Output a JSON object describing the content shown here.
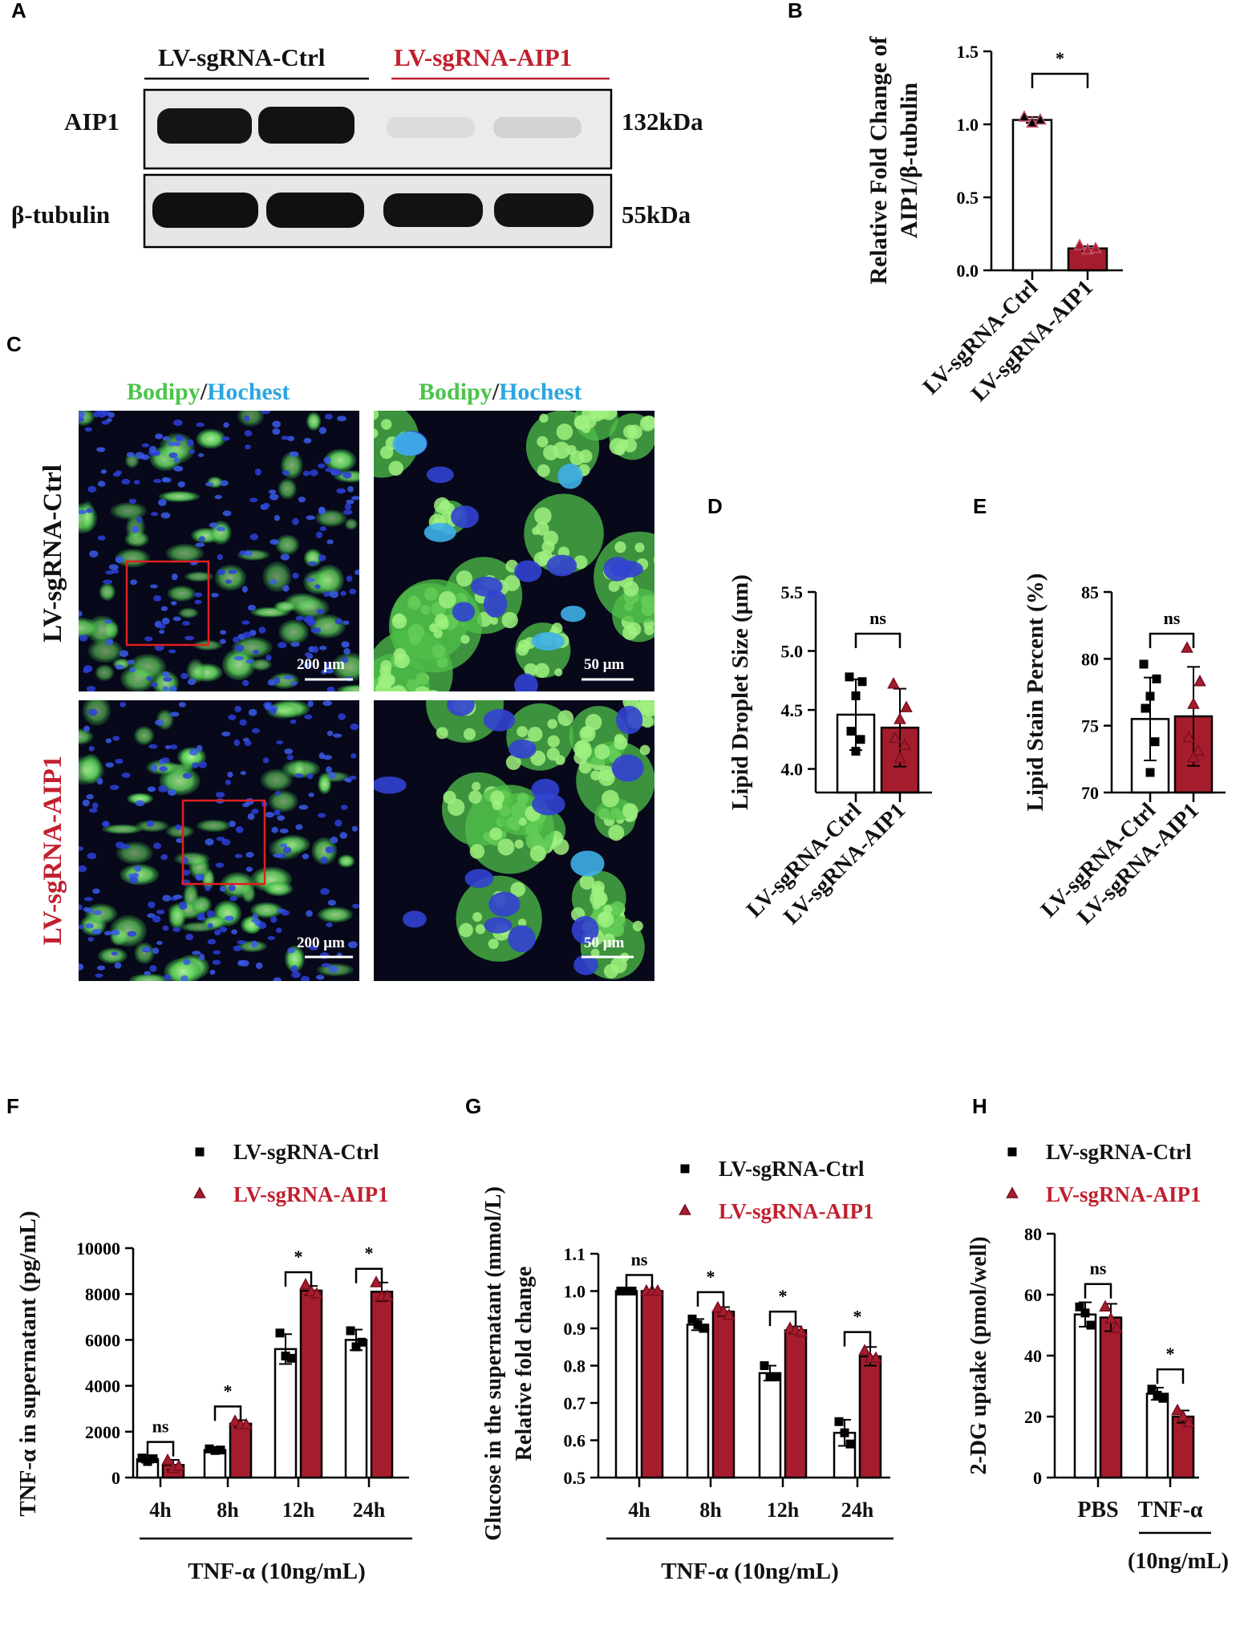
{
  "panels": {
    "A": "A",
    "B": "B",
    "C": "C",
    "D": "D",
    "E": "E",
    "F": "F",
    "G": "G",
    "H": "H"
  },
  "colors": {
    "ctrl": "#ffffff",
    "aip1": "#a51d2d",
    "red_text": "#c0202f",
    "green": "#5ad35a",
    "blue": "#2aa6e0"
  },
  "blot": {
    "group_ctrl": "LV-sgRNA-Ctrl",
    "group_aip1": "LV-sgRNA-AIP1",
    "row1_label": "AIP1",
    "row1_size": "132kDa",
    "row2_label": "β-tubulin",
    "row2_size": "55kDa"
  },
  "micro": {
    "stain_green": "Bodipy",
    "slash": "/",
    "stain_blue": "Hochest",
    "row_ctrl": "LV-sgRNA-Ctrl",
    "row_aip1": "LV-sgRNA-AIP1",
    "scale_200": "200 μm",
    "scale_50": "50 μm"
  },
  "chart_data": [
    {
      "panel": "B",
      "type": "bar",
      "ylabel_line1": "Relative Fold Change of",
      "ylabel_line2": "AIP1/β-tubulin",
      "categories": [
        "LV-sgRNA-Ctrl",
        "LV-sgRNA-AIP1"
      ],
      "values": [
        1.03,
        0.15
      ],
      "points": [
        [
          1.05,
          1.01,
          1.03
        ],
        [
          0.17,
          0.14,
          0.15
        ]
      ],
      "ylim": [
        0,
        1.5
      ],
      "yticks": [
        "0.0",
        "0.5",
        "1.0",
        "1.5"
      ],
      "significance": "*"
    },
    {
      "panel": "D",
      "type": "bar",
      "ylabel": "Lipid Droplet Size (μm)",
      "categories": [
        "LV-sgRNA-Ctrl",
        "LV-sgRNA-AIP1"
      ],
      "values": [
        4.46,
        4.35
      ],
      "errors": [
        0.3,
        0.33
      ],
      "points": [
        [
          4.78,
          4.74,
          4.62,
          4.32,
          4.25,
          4.15
        ],
        [
          4.72,
          4.52,
          4.42,
          4.26,
          4.2,
          4.09
        ]
      ],
      "ylim": [
        3.8,
        5.5
      ],
      "yticks": [
        "4.0",
        "4.5",
        "5.0",
        "5.5"
      ],
      "significance": "ns"
    },
    {
      "panel": "E",
      "type": "bar",
      "ylabel": "Lipid Stain Percent (%)",
      "categories": [
        "LV-sgRNA-Ctrl",
        "LV-sgRNA-AIP1"
      ],
      "values": [
        75.5,
        75.7
      ],
      "errors": [
        3.1,
        3.7
      ],
      "points": [
        [
          79.6,
          78.5,
          77.2,
          76.3,
          73.8,
          71.5
        ],
        [
          80.8,
          78.3,
          76.6,
          74.1,
          73.1,
          72.6
        ]
      ],
      "ylim": [
        70,
        85
      ],
      "yticks": [
        "70",
        "75",
        "80",
        "85"
      ],
      "significance": "ns"
    },
    {
      "panel": "F",
      "type": "bar",
      "ylabel": "TNF-α in supernatant (pg/mL)",
      "xlabel": "TNF-α (10ng/mL)",
      "categories": [
        "4h",
        "8h",
        "12h",
        "24h"
      ],
      "series": [
        {
          "name": "LV-sgRNA-Ctrl",
          "values": [
            800,
            1200,
            5600,
            6000
          ],
          "errors": [
            150,
            80,
            650,
            450
          ],
          "points": [
            [
              850,
              700,
              820
            ],
            [
              1250,
              1180,
              1200
            ],
            [
              6300,
              5300,
              5200
            ],
            [
              6400,
              5700,
              5900
            ]
          ]
        },
        {
          "name": "LV-sgRNA-AIP1",
          "values": [
            550,
            2350,
            8150,
            8100
          ],
          "errors": [
            220,
            150,
            200,
            400
          ],
          "points": [
            [
              750,
              400,
              500
            ],
            [
              2450,
              2300,
              2300
            ],
            [
              8400,
              8100,
              8000
            ],
            [
              8500,
              7900,
              7900
            ]
          ]
        }
      ],
      "ylim": [
        0,
        10000
      ],
      "yticks": [
        "0",
        "2000",
        "4000",
        "6000",
        "8000",
        "10000"
      ],
      "significance": [
        "ns",
        "*",
        "*",
        "*"
      ]
    },
    {
      "panel": "G",
      "type": "bar",
      "ylabel_line1": "Glucose in the supernatant (mmol/L)",
      "ylabel_line2": "Relative fold change",
      "xlabel": "TNF-α (10ng/mL)",
      "categories": [
        "4h",
        "8h",
        "12h",
        "24h"
      ],
      "series": [
        {
          "name": "LV-sgRNA-Ctrl",
          "values": [
            1.0,
            0.91,
            0.78,
            0.62
          ],
          "errors": [
            0.002,
            0.015,
            0.02,
            0.035
          ],
          "points": [
            [
              1.0,
              1.0,
              1.0
            ],
            [
              0.925,
              0.91,
              0.9
            ],
            [
              0.8,
              0.77,
              0.77
            ],
            [
              0.65,
              0.62,
              0.59
            ]
          ]
        },
        {
          "name": "LV-sgRNA-AIP1",
          "values": [
            1.0,
            0.945,
            0.895,
            0.825
          ],
          "errors": [
            0.003,
            0.012,
            0.01,
            0.025
          ],
          "points": [
            [
              1.0,
              1.0,
              1.0
            ],
            [
              0.955,
              0.945,
              0.935
            ],
            [
              0.9,
              0.895,
              0.89
            ],
            [
              0.84,
              0.82,
              0.82
            ]
          ]
        }
      ],
      "ylim": [
        0.5,
        1.1
      ],
      "yticks": [
        "0.5",
        "0.6",
        "0.7",
        "0.8",
        "0.9",
        "1.0",
        "1.1"
      ],
      "significance": [
        "ns",
        "*",
        "*",
        "*"
      ]
    },
    {
      "panel": "H",
      "type": "bar",
      "ylabel": "2-DG uptake (pmol/well)",
      "categories": [
        "PBS",
        "TNF-α"
      ],
      "xsub": "(10ng/mL)",
      "series": [
        {
          "name": "LV-sgRNA-Ctrl",
          "values": [
            53.5,
            27.5
          ],
          "errors": [
            4,
            2
          ],
          "points": [
            [
              56,
              54,
              50
            ],
            [
              29,
              27,
              26
            ]
          ]
        },
        {
          "name": "LV-sgRNA-AIP1",
          "values": [
            52.5,
            20
          ],
          "errors": [
            4.5,
            2
          ],
          "points": [
            [
              56,
              52,
              49
            ],
            [
              22,
              20,
              18
            ]
          ]
        }
      ],
      "ylim": [
        0,
        80
      ],
      "yticks": [
        "0",
        "20",
        "40",
        "60",
        "80"
      ],
      "significance": [
        "ns",
        "*"
      ]
    }
  ]
}
